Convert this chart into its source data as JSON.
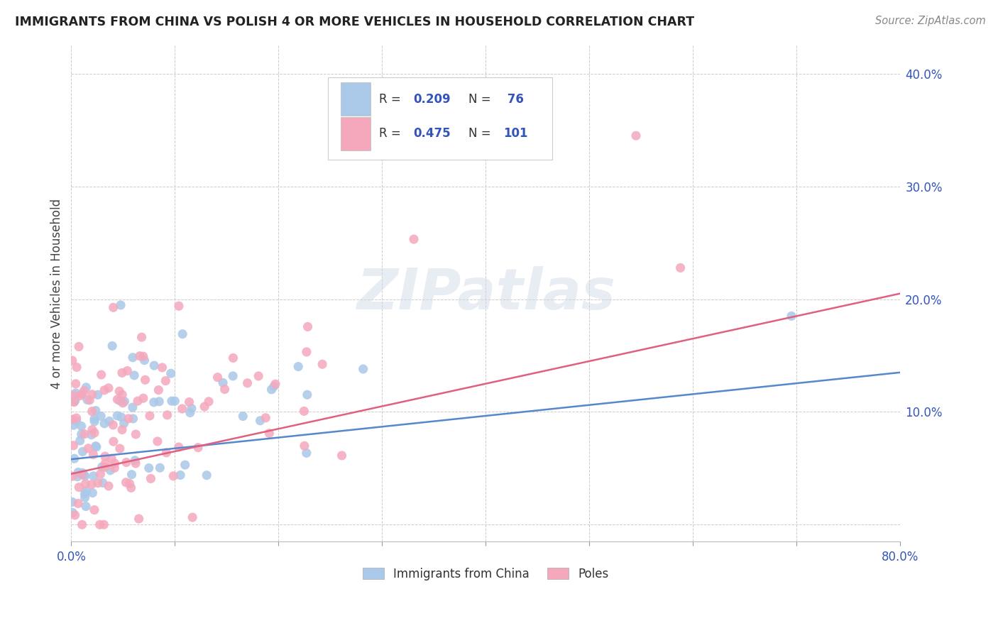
{
  "title": "IMMIGRANTS FROM CHINA VS POLISH 4 OR MORE VEHICLES IN HOUSEHOLD CORRELATION CHART",
  "source": "Source: ZipAtlas.com",
  "ylabel_label": "4 or more Vehicles in Household",
  "xlim": [
    0.0,
    0.8
  ],
  "ylim": [
    -0.015,
    0.425
  ],
  "china_R": 0.209,
  "china_N": 76,
  "poles_R": 0.475,
  "poles_N": 101,
  "china_color": "#aac8e8",
  "poles_color": "#f5a8bc",
  "china_line_color": "#5588cc",
  "poles_line_color": "#e06080",
  "text_color": "#3355bb",
  "label_color": "#444444",
  "watermark": "ZIPatlas",
  "background_color": "#ffffff",
  "grid_color": "#cccccc",
  "china_line_start_y": 0.058,
  "china_line_end_y": 0.135,
  "poles_line_start_y": 0.045,
  "poles_line_end_y": 0.205
}
